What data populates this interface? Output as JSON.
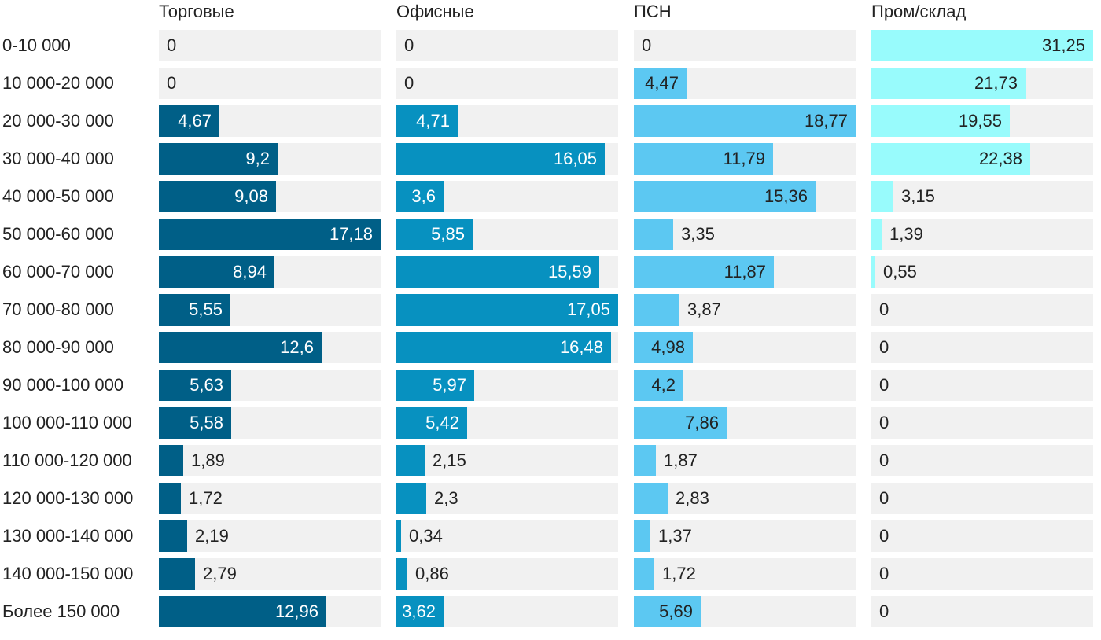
{
  "chart_data": {
    "type": "bar",
    "orientation": "horizontal",
    "layout": "small-multiples",
    "title": "",
    "categories": [
      "0-10 000",
      "10 000-20 000",
      "20 000-30 000",
      "30 000-40 000",
      "40 000-50 000",
      "50 000-60 000",
      "60 000-70 000",
      "70 000-80 000",
      "80 000-90 000",
      "90 000-100 000",
      "100 000-110 000",
      "110 000-120 000",
      "120 000-130 000",
      "130 000-140 000",
      "140 000-150 000",
      "Более 150 000"
    ],
    "series": [
      {
        "name": "Торговые",
        "color": "#005f87",
        "label_color_inside": "#ffffff",
        "values": [
          0,
          0,
          4.67,
          9.2,
          9.08,
          17.18,
          8.94,
          5.55,
          12.6,
          5.63,
          5.58,
          1.89,
          1.72,
          2.19,
          2.79,
          12.96
        ],
        "labels": [
          "0",
          "0",
          "4,67",
          "9,2",
          "9,08",
          "17,18",
          "8,94",
          "5,55",
          "12,6",
          "5,63",
          "5,58",
          "1,89",
          "1,72",
          "2,19",
          "2,79",
          "12,96"
        ]
      },
      {
        "name": "Офисные",
        "color": "#0791c0",
        "label_color_inside": "#ffffff",
        "values": [
          0,
          0,
          4.71,
          16.05,
          3.6,
          5.85,
          15.59,
          17.05,
          16.48,
          5.97,
          5.42,
          2.15,
          2.3,
          0.34,
          0.86,
          3.62
        ],
        "labels": [
          "0",
          "0",
          "4,71",
          "16,05",
          "3,6",
          "5,85",
          "15,59",
          "17,05",
          "16,48",
          "5,97",
          "5,42",
          "2,15",
          "2,3",
          "0,34",
          "0,86",
          "3,62"
        ]
      },
      {
        "name": "ПСН",
        "color": "#5cc8f2",
        "label_color_inside": "#222222",
        "values": [
          0,
          4.47,
          18.77,
          11.79,
          15.36,
          3.35,
          11.87,
          3.87,
          4.98,
          4.2,
          7.86,
          1.87,
          2.83,
          1.37,
          1.72,
          5.69
        ],
        "labels": [
          "0",
          "4,47",
          "18,77",
          "11,79",
          "15,36",
          "3,35",
          "11,87",
          "3,87",
          "4,98",
          "4,2",
          "7,86",
          "1,87",
          "2,83",
          "1,37",
          "1,72",
          "5,69"
        ]
      },
      {
        "name": "Пром/склад",
        "color": "#98fbfc",
        "label_color_inside": "#222222",
        "values": [
          31.25,
          21.73,
          19.55,
          22.38,
          3.15,
          1.39,
          0.55,
          0,
          0,
          0,
          0,
          0,
          0,
          0,
          0,
          0
        ],
        "labels": [
          "31,25",
          "21,73",
          "19,55",
          "22,38",
          "3,15",
          "1,39",
          "0,55",
          "0",
          "0",
          "0",
          "0",
          "0",
          "0",
          "0",
          "0",
          "0"
        ]
      }
    ],
    "label_color_outside": "#222222",
    "track_color": "#f1f1f1",
    "xlabel": "",
    "ylabel": "",
    "grid": false,
    "legend": "none"
  }
}
